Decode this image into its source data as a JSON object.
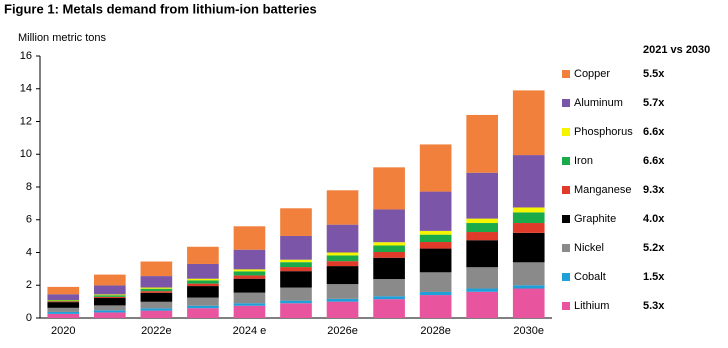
{
  "chart_data": {
    "type": "stacked_bar",
    "title": "Figure 1:  Metals demand from lithium-ion batteries",
    "y_label": "Million metric tons",
    "ratio_header": "2021 vs 2030",
    "categories": [
      "2020",
      null,
      "2022e",
      null,
      "2024 e",
      null,
      "2026e",
      null,
      "2028e",
      null,
      "2030e"
    ],
    "ylim": [
      0,
      16
    ],
    "yticks": [
      0,
      2,
      4,
      6,
      8,
      10,
      12,
      14,
      16
    ],
    "series": [
      {
        "name": "Lithium",
        "color": "#e8559e",
        "ratio": "5.3x",
        "values": [
          0.25,
          0.34,
          0.45,
          0.6,
          0.75,
          0.9,
          1.0,
          1.15,
          1.4,
          1.6,
          1.8
        ]
      },
      {
        "name": "Cobalt",
        "color": "#1fa0d8",
        "ratio": "1.5x",
        "values": [
          0.12,
          0.13,
          0.14,
          0.15,
          0.15,
          0.16,
          0.17,
          0.18,
          0.19,
          0.2,
          0.2
        ]
      },
      {
        "name": "Nickel",
        "color": "#8a8a8a",
        "ratio": "5.2x",
        "values": [
          0.25,
          0.3,
          0.4,
          0.5,
          0.65,
          0.8,
          0.9,
          1.05,
          1.2,
          1.3,
          1.4
        ]
      },
      {
        "name": "Graphite",
        "color": "#000000",
        "ratio": "4.0x",
        "values": [
          0.35,
          0.45,
          0.55,
          0.7,
          0.85,
          1.0,
          1.1,
          1.3,
          1.45,
          1.65,
          1.8
        ]
      },
      {
        "name": "Manganese",
        "color": "#e03a2a",
        "ratio": "9.3x",
        "values": [
          0.05,
          0.07,
          0.1,
          0.15,
          0.2,
          0.25,
          0.3,
          0.35,
          0.4,
          0.5,
          0.6
        ]
      },
      {
        "name": "Iron",
        "color": "#1aaa4a",
        "ratio": "6.6x",
        "values": [
          0.05,
          0.1,
          0.15,
          0.2,
          0.25,
          0.3,
          0.35,
          0.4,
          0.45,
          0.55,
          0.65
        ]
      },
      {
        "name": "Phosphorus",
        "color": "#f5f500",
        "ratio": "6.6x",
        "values": [
          0.03,
          0.05,
          0.07,
          0.1,
          0.12,
          0.15,
          0.18,
          0.2,
          0.23,
          0.27,
          0.3
        ]
      },
      {
        "name": "Aluminum",
        "color": "#7b55a8",
        "ratio": "5.7x",
        "values": [
          0.35,
          0.55,
          0.7,
          0.9,
          1.2,
          1.45,
          1.7,
          2.0,
          2.4,
          2.8,
          3.2
        ]
      },
      {
        "name": "Copper",
        "color": "#f0803c",
        "ratio": "5.5x",
        "values": [
          0.45,
          0.66,
          0.89,
          1.05,
          1.43,
          1.69,
          2.1,
          2.57,
          2.88,
          3.53,
          3.95
        ]
      }
    ]
  }
}
